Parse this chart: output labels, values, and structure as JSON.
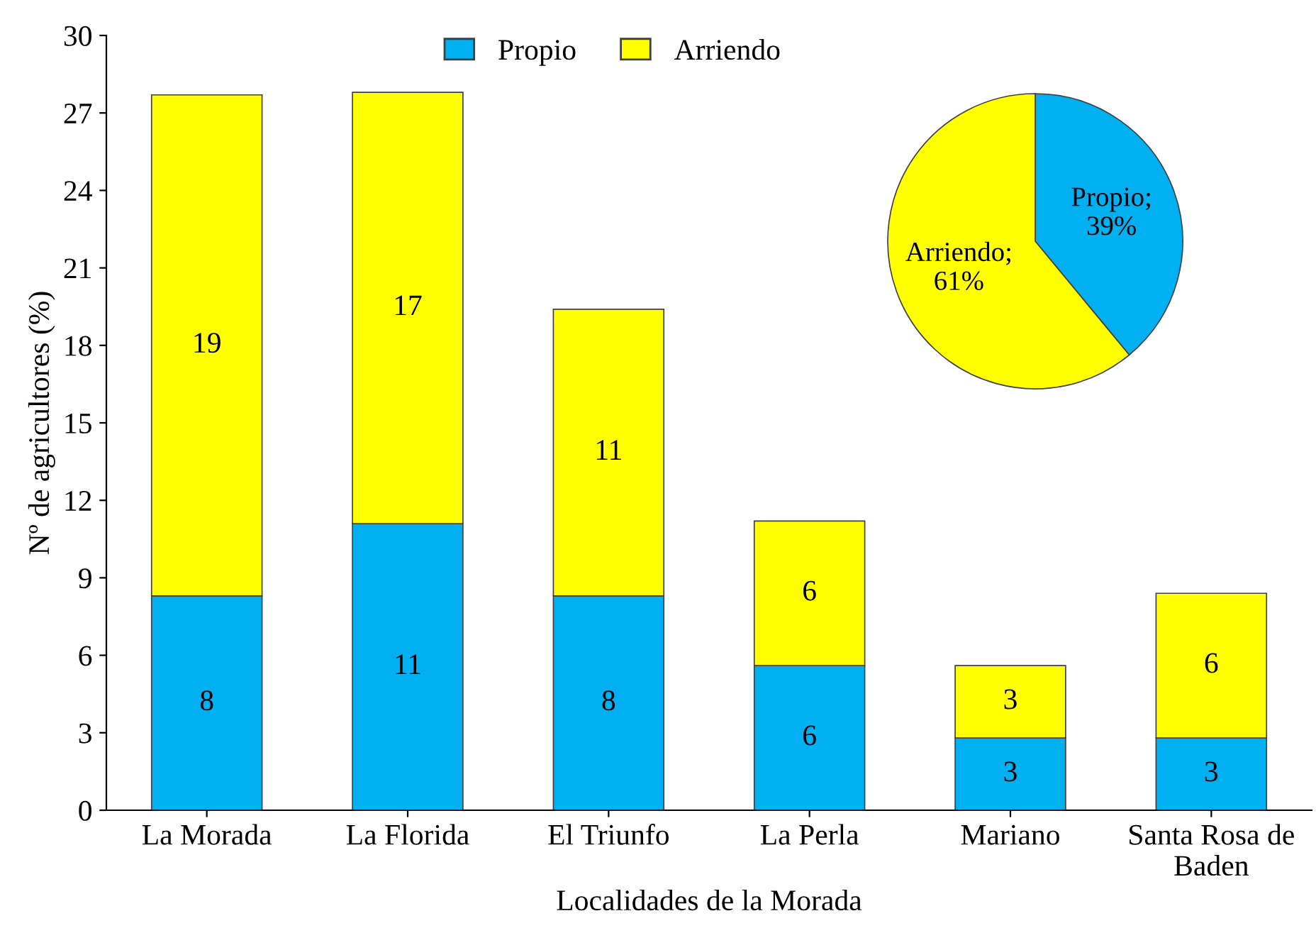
{
  "chart_data": [
    {
      "type": "bar",
      "stacked": true,
      "xlabel": "Localidades de la Morada",
      "ylabel": "Nº de agricultores (%)",
      "categories": [
        "La Morada",
        "La Florida",
        "El Triunfo",
        "La Perla",
        "Mariano",
        "Santa Rosa de\nBaden"
      ],
      "series": [
        {
          "name": "Propio",
          "color": "#00b0f0",
          "values": [
            8.3,
            11.1,
            8.3,
            5.6,
            2.8,
            2.8
          ],
          "value_labels": [
            "8",
            "11",
            "8",
            "6",
            "3",
            "3"
          ]
        },
        {
          "name": "Arriendo",
          "color": "#ffff00",
          "values": [
            19.4,
            16.7,
            11.1,
            5.6,
            2.8,
            5.6
          ],
          "value_labels": [
            "19",
            "17",
            "11",
            "6",
            "3",
            "6"
          ]
        }
      ],
      "ylim": [
        0,
        30
      ],
      "yticks": [
        0,
        3,
        6,
        9,
        12,
        15,
        18,
        21,
        24,
        27,
        30
      ],
      "grid": false,
      "legend": "top"
    },
    {
      "type": "pie",
      "categories": [
        "Propio",
        "Arriendo"
      ],
      "values": [
        39,
        61
      ],
      "colors": [
        "#00b0f0",
        "#ffff00"
      ],
      "value_labels": [
        ";\n39%",
        ";\n61%"
      ]
    }
  ]
}
